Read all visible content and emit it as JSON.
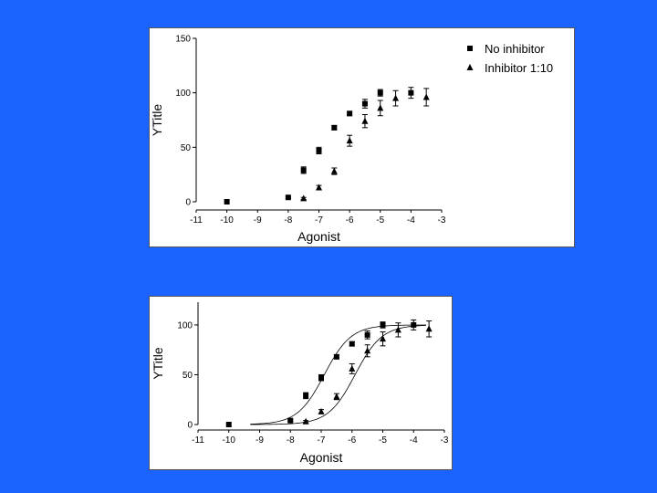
{
  "chart_data": [
    {
      "type": "scatter",
      "title": "",
      "xlabel": "Agonist",
      "ylabel": "YTitle",
      "xlim": [
        -11,
        -3
      ],
      "ylim": [
        0,
        150
      ],
      "x_ticks": [
        "-11",
        "-10",
        "-9",
        "-8",
        "-7",
        "-6",
        "-5",
        "-4",
        "-3"
      ],
      "y_ticks": [
        "0",
        "50",
        "100",
        "150"
      ],
      "legend_position": "top-right",
      "series": [
        {
          "name": "No inhibitor",
          "marker": "square",
          "points": [
            {
              "x": -10,
              "y": 0,
              "err": 0
            },
            {
              "x": -8,
              "y": 4,
              "err": 1
            },
            {
              "x": -7.5,
              "y": 29,
              "err": 3
            },
            {
              "x": -7,
              "y": 47,
              "err": 3
            },
            {
              "x": -6.5,
              "y": 68,
              "err": 2
            },
            {
              "x": -6,
              "y": 81,
              "err": 2
            },
            {
              "x": -5.5,
              "y": 90,
              "err": 4
            },
            {
              "x": -5,
              "y": 100,
              "err": 3
            },
            {
              "x": -4,
              "y": 100,
              "err": 5
            }
          ]
        },
        {
          "name": "Inhibitor 1:10",
          "marker": "triangle",
          "points": [
            {
              "x": -7.5,
              "y": 3,
              "err": 1
            },
            {
              "x": -7,
              "y": 13,
              "err": 2
            },
            {
              "x": -6.5,
              "y": 28,
              "err": 3
            },
            {
              "x": -6,
              "y": 56,
              "err": 5
            },
            {
              "x": -5.5,
              "y": 74,
              "err": 6
            },
            {
              "x": -5,
              "y": 86,
              "err": 7
            },
            {
              "x": -4.5,
              "y": 95,
              "err": 7
            },
            {
              "x": -3.5,
              "y": 96,
              "err": 8
            }
          ]
        }
      ]
    },
    {
      "type": "scatter",
      "title": "",
      "xlabel": "Agonist",
      "ylabel": "YTitle",
      "xlim": [
        -11,
        -3
      ],
      "ylim": [
        0,
        110
      ],
      "x_ticks": [
        "-11",
        "-10",
        "-9",
        "-8",
        "-7",
        "-6",
        "-5",
        "-4",
        "-3"
      ],
      "y_ticks": [
        "0",
        "50",
        "100"
      ],
      "fit_curves": [
        {
          "series": "No inhibitor",
          "model": "sigmoidal dose-response",
          "bottom": 0,
          "top": 100,
          "logEC50": -6.9,
          "hill": 1
        },
        {
          "series": "Inhibitor 1:10",
          "model": "sigmoidal dose-response",
          "bottom": 0,
          "top": 100,
          "logEC50": -5.9,
          "hill": 1
        }
      ],
      "series": [
        {
          "name": "No inhibitor",
          "marker": "square",
          "points": [
            {
              "x": -10,
              "y": 0,
              "err": 0
            },
            {
              "x": -8,
              "y": 4,
              "err": 1
            },
            {
              "x": -7.5,
              "y": 29,
              "err": 3
            },
            {
              "x": -7,
              "y": 47,
              "err": 3
            },
            {
              "x": -6.5,
              "y": 68,
              "err": 2
            },
            {
              "x": -6,
              "y": 81,
              "err": 2
            },
            {
              "x": -5.5,
              "y": 90,
              "err": 4
            },
            {
              "x": -5,
              "y": 100,
              "err": 3
            },
            {
              "x": -4,
              "y": 100,
              "err": 5
            }
          ]
        },
        {
          "name": "Inhibitor 1:10",
          "marker": "triangle",
          "points": [
            {
              "x": -7.5,
              "y": 3,
              "err": 1
            },
            {
              "x": -7,
              "y": 13,
              "err": 2
            },
            {
              "x": -6.5,
              "y": 28,
              "err": 3
            },
            {
              "x": -6,
              "y": 56,
              "err": 5
            },
            {
              "x": -5.5,
              "y": 74,
              "err": 6
            },
            {
              "x": -5,
              "y": 86,
              "err": 7
            },
            {
              "x": -4.5,
              "y": 95,
              "err": 7
            },
            {
              "x": -3.5,
              "y": 96,
              "err": 8
            }
          ]
        }
      ]
    }
  ]
}
